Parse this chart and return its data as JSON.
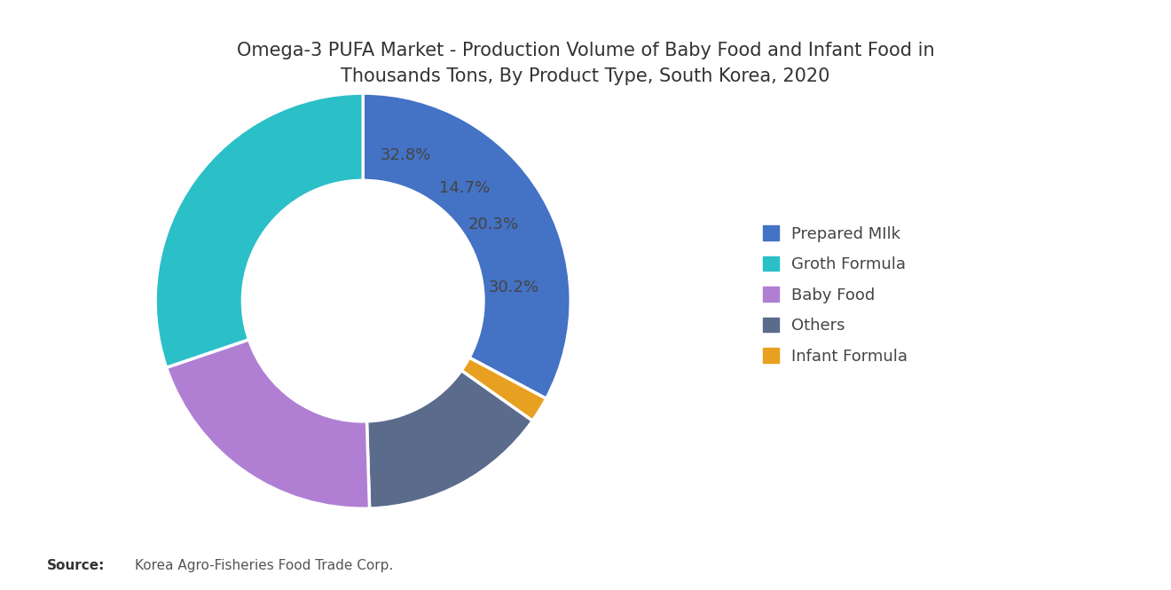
{
  "title": "Omega-3 PUFA Market - Production Volume of Baby Food and Infant Food in\nThousands Tons, By Product Type, South Korea, 2020",
  "slices": [
    32.8,
    2.0,
    14.7,
    20.3,
    30.2
  ],
  "slice_labels": [
    "32.8%",
    "",
    "14.7%",
    "20.3%",
    "30.2%"
  ],
  "colors": [
    "#4472C4",
    "#E8A020",
    "#5B6B8C",
    "#B07FD4",
    "#2BBFC8"
  ],
  "legend_labels": [
    "Prepared MIlk",
    "Groth Formula",
    "Baby Food",
    "Others",
    "Infant Formula"
  ],
  "legend_colors": [
    "#4472C4",
    "#2BBFC8",
    "#B07FD4",
    "#5B6B8C",
    "#E8A020"
  ],
  "source_bold": "Source:",
  "source_text": "  Korea Agro-Fisheries Food Trade Corp.",
  "background_color": "#FFFFFF",
  "title_fontsize": 15,
  "label_fontsize": 13,
  "legend_fontsize": 13
}
